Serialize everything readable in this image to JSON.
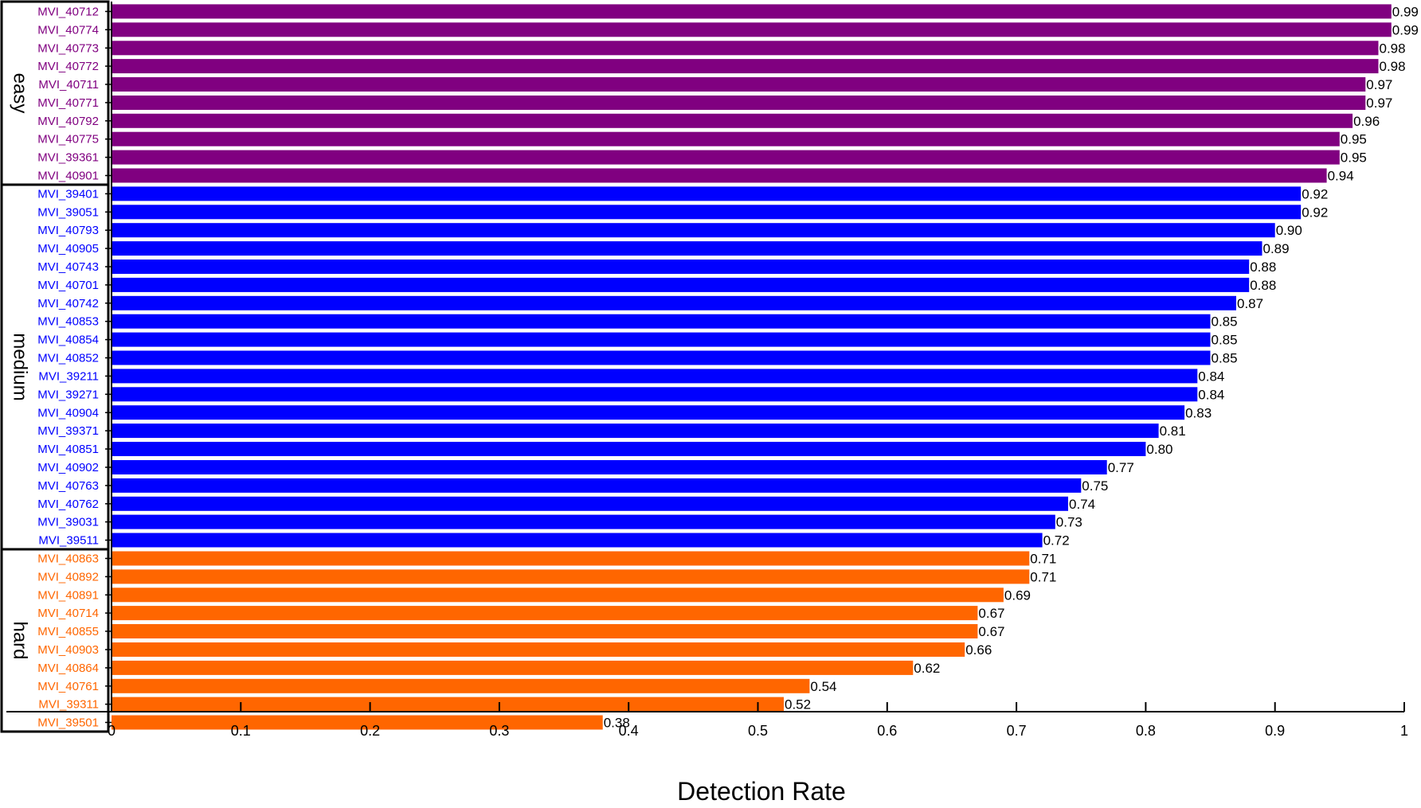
{
  "chart_data": {
    "type": "bar",
    "orientation": "horizontal",
    "xlabel": "Detection Rate",
    "xlim": [
      0,
      1
    ],
    "xticks": [
      "0",
      "0.1",
      "0.2",
      "0.3",
      "0.4",
      "0.5",
      "0.6",
      "0.7",
      "0.8",
      "0.9",
      "1"
    ],
    "groups": [
      {
        "name": "easy",
        "color": "#800080",
        "bars": [
          {
            "label": "MVI_40712",
            "value": 0.99,
            "value_text": "0.99"
          },
          {
            "label": "MVI_40774",
            "value": 0.99,
            "value_text": "0.99"
          },
          {
            "label": "MVI_40773",
            "value": 0.98,
            "value_text": "0.98"
          },
          {
            "label": "MVI_40772",
            "value": 0.98,
            "value_text": "0.98"
          },
          {
            "label": "MVI_40711",
            "value": 0.97,
            "value_text": "0.97"
          },
          {
            "label": "MVI_40771",
            "value": 0.97,
            "value_text": "0.97"
          },
          {
            "label": "MVI_40792",
            "value": 0.96,
            "value_text": "0.96"
          },
          {
            "label": "MVI_40775",
            "value": 0.95,
            "value_text": "0.95"
          },
          {
            "label": "MVI_39361",
            "value": 0.95,
            "value_text": "0.95"
          },
          {
            "label": "MVI_40901",
            "value": 0.94,
            "value_text": "0.94"
          }
        ]
      },
      {
        "name": "medium",
        "color": "#0000ff",
        "bars": [
          {
            "label": "MVI_39401",
            "value": 0.92,
            "value_text": "0.92"
          },
          {
            "label": "MVI_39051",
            "value": 0.92,
            "value_text": "0.92"
          },
          {
            "label": "MVI_40793",
            "value": 0.9,
            "value_text": "0.90"
          },
          {
            "label": "MVI_40905",
            "value": 0.89,
            "value_text": "0.89"
          },
          {
            "label": "MVI_40743",
            "value": 0.88,
            "value_text": "0.88"
          },
          {
            "label": "MVI_40701",
            "value": 0.88,
            "value_text": "0.88"
          },
          {
            "label": "MVI_40742",
            "value": 0.87,
            "value_text": "0.87"
          },
          {
            "label": "MVI_40853",
            "value": 0.85,
            "value_text": "0.85"
          },
          {
            "label": "MVI_40854",
            "value": 0.85,
            "value_text": "0.85"
          },
          {
            "label": "MVI_40852",
            "value": 0.85,
            "value_text": "0.85"
          },
          {
            "label": "MVI_39211",
            "value": 0.84,
            "value_text": "0.84"
          },
          {
            "label": "MVI_39271",
            "value": 0.84,
            "value_text": "0.84"
          },
          {
            "label": "MVI_40904",
            "value": 0.83,
            "value_text": "0.83"
          },
          {
            "label": "MVI_39371",
            "value": 0.81,
            "value_text": "0.81"
          },
          {
            "label": "MVI_40851",
            "value": 0.8,
            "value_text": "0.80"
          },
          {
            "label": "MVI_40902",
            "value": 0.77,
            "value_text": "0.77"
          },
          {
            "label": "MVI_40763",
            "value": 0.75,
            "value_text": "0.75"
          },
          {
            "label": "MVI_40762",
            "value": 0.74,
            "value_text": "0.74"
          },
          {
            "label": "MVI_39031",
            "value": 0.73,
            "value_text": "0.73"
          },
          {
            "label": "MVI_39511",
            "value": 0.72,
            "value_text": "0.72"
          }
        ]
      },
      {
        "name": "hard",
        "color": "#ff6600",
        "bars": [
          {
            "label": "MVI_40863",
            "value": 0.71,
            "value_text": "0.71"
          },
          {
            "label": "MVI_40892",
            "value": 0.71,
            "value_text": "0.71"
          },
          {
            "label": "MVI_40891",
            "value": 0.69,
            "value_text": "0.69"
          },
          {
            "label": "MVI_40714",
            "value": 0.67,
            "value_text": "0.67"
          },
          {
            "label": "MVI_40855",
            "value": 0.67,
            "value_text": "0.67"
          },
          {
            "label": "MVI_40903",
            "value": 0.66,
            "value_text": "0.66"
          },
          {
            "label": "MVI_40864",
            "value": 0.62,
            "value_text": "0.62"
          },
          {
            "label": "MVI_40761",
            "value": 0.54,
            "value_text": "0.54"
          },
          {
            "label": "MVI_39311",
            "value": 0.52,
            "value_text": "0.52"
          },
          {
            "label": "MVI_39501",
            "value": 0.38,
            "value_text": "0.38"
          }
        ]
      }
    ]
  }
}
